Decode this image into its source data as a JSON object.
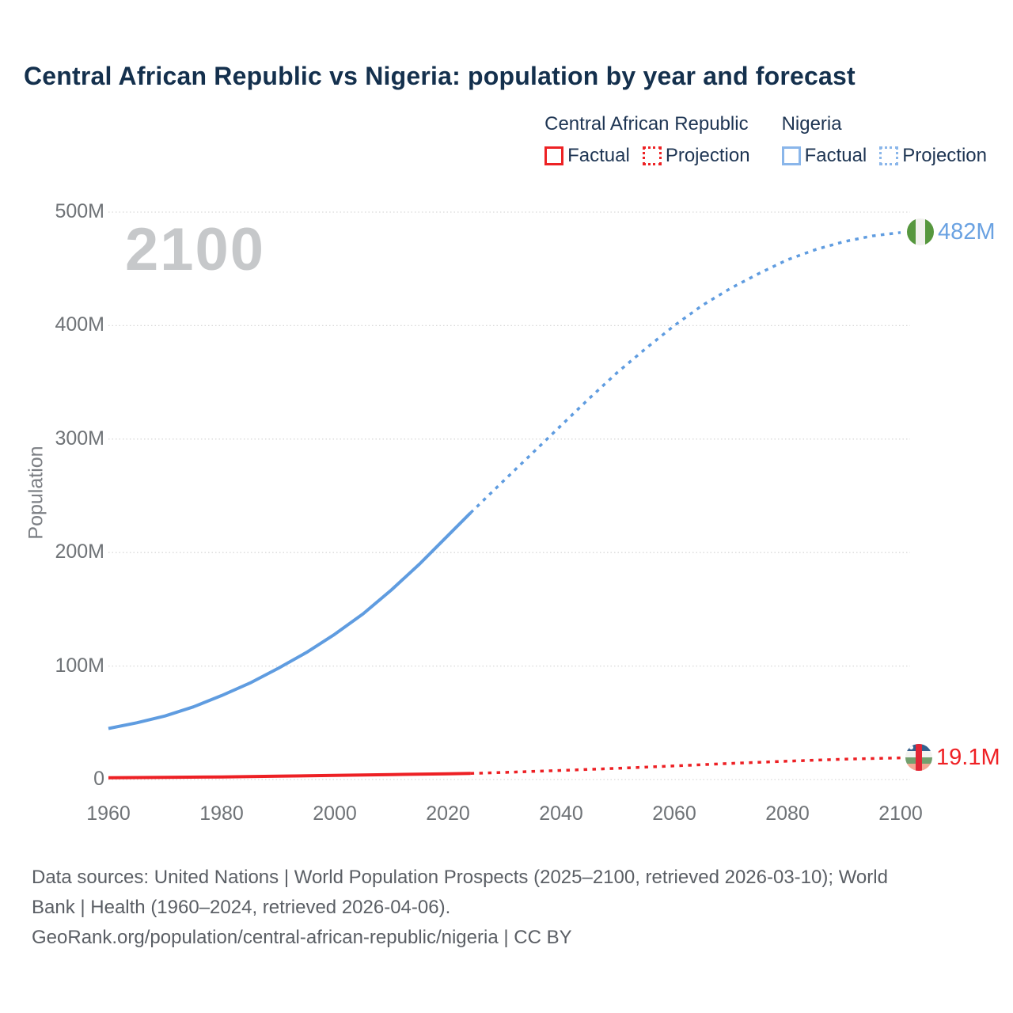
{
  "title": "Central African Republic vs Nigeria: population by year and forecast",
  "watermark": "2100",
  "legend": {
    "groups": [
      {
        "name": "Central African Republic",
        "color": "#ed2224",
        "items": [
          {
            "label": "Factual",
            "style": "solid"
          },
          {
            "label": "Projection",
            "style": "dotted"
          }
        ]
      },
      {
        "name": "Nigeria",
        "color": "#8ab6ea",
        "items": [
          {
            "label": "Factual",
            "style": "solid"
          },
          {
            "label": "Projection",
            "style": "dotted"
          }
        ]
      }
    ]
  },
  "end_labels": {
    "nigeria": {
      "text": "482M",
      "flag": "nigeria-flag-icon"
    },
    "car": {
      "text": "19.1M",
      "flag": "central-african-republic-flag-icon"
    }
  },
  "footer": {
    "line1": "Data sources: United Nations | World Population Prospects (2025–2100, retrieved 2026-03-10); World",
    "line2": "Bank | Health (1960–2024, retrieved 2026-04-06).",
    "line3": "GeoRank.org/population/central-african-republic/nigeria | CC BY"
  },
  "chart_data": {
    "type": "line",
    "title": "Central African Republic vs Nigeria: population by year and forecast",
    "xlabel": "",
    "ylabel": "Population",
    "xlim": [
      1960,
      2100
    ],
    "ylim_millions": [
      0,
      500
    ],
    "grid": "horizontal-dotted",
    "legend_position": "top-right",
    "x_ticks": [
      1960,
      1980,
      2000,
      2020,
      2040,
      2060,
      2080,
      2100
    ],
    "y_ticks": [
      {
        "value": 0,
        "label": "0"
      },
      {
        "value": 100,
        "label": "100M"
      },
      {
        "value": 200,
        "label": "200M"
      },
      {
        "value": 300,
        "label": "300M"
      },
      {
        "value": 400,
        "label": "400M"
      },
      {
        "value": 500,
        "label": "500M"
      }
    ],
    "unit": "millions of people",
    "series": [
      {
        "name": "Nigeria Factual",
        "style": "solid",
        "color": "#5f9ce0",
        "points": [
          [
            1960,
            45
          ],
          [
            1965,
            50
          ],
          [
            1970,
            56
          ],
          [
            1975,
            64
          ],
          [
            1980,
            74
          ],
          [
            1985,
            85
          ],
          [
            1990,
            98
          ],
          [
            1995,
            112
          ],
          [
            2000,
            128
          ],
          [
            2005,
            146
          ],
          [
            2010,
            167
          ],
          [
            2015,
            190
          ],
          [
            2020,
            215
          ],
          [
            2024,
            235
          ]
        ]
      },
      {
        "name": "Nigeria Projection",
        "style": "dotted",
        "color": "#5f9ce0",
        "points": [
          [
            2024,
            235
          ],
          [
            2030,
            264
          ],
          [
            2035,
            288
          ],
          [
            2040,
            312
          ],
          [
            2045,
            336
          ],
          [
            2050,
            359
          ],
          [
            2055,
            380
          ],
          [
            2060,
            400
          ],
          [
            2065,
            418
          ],
          [
            2070,
            433
          ],
          [
            2075,
            446
          ],
          [
            2080,
            458
          ],
          [
            2085,
            467
          ],
          [
            2090,
            474
          ],
          [
            2095,
            479
          ],
          [
            2100,
            482
          ]
        ]
      },
      {
        "name": "Central African Republic Factual",
        "style": "solid",
        "color": "#ed2024",
        "points": [
          [
            1960,
            1.6
          ],
          [
            1970,
            1.9
          ],
          [
            1980,
            2.3
          ],
          [
            1990,
            2.9
          ],
          [
            2000,
            3.6
          ],
          [
            2010,
            4.4
          ],
          [
            2020,
            5.1
          ],
          [
            2024,
            5.4
          ]
        ]
      },
      {
        "name": "Central African Republic Projection",
        "style": "dotted",
        "color": "#ed2024",
        "points": [
          [
            2024,
            5.4
          ],
          [
            2030,
            6.3
          ],
          [
            2040,
            8.0
          ],
          [
            2050,
            9.9
          ],
          [
            2060,
            12.0
          ],
          [
            2070,
            14.2
          ],
          [
            2080,
            16.2
          ],
          [
            2090,
            17.9
          ],
          [
            2100,
            19.1
          ]
        ]
      }
    ],
    "end_values": [
      {
        "series": "Nigeria",
        "year": 2100,
        "label": "482M",
        "value_millions": 482
      },
      {
        "series": "Central African Republic",
        "year": 2100,
        "label": "19.1M",
        "value_millions": 19.1
      }
    ]
  }
}
